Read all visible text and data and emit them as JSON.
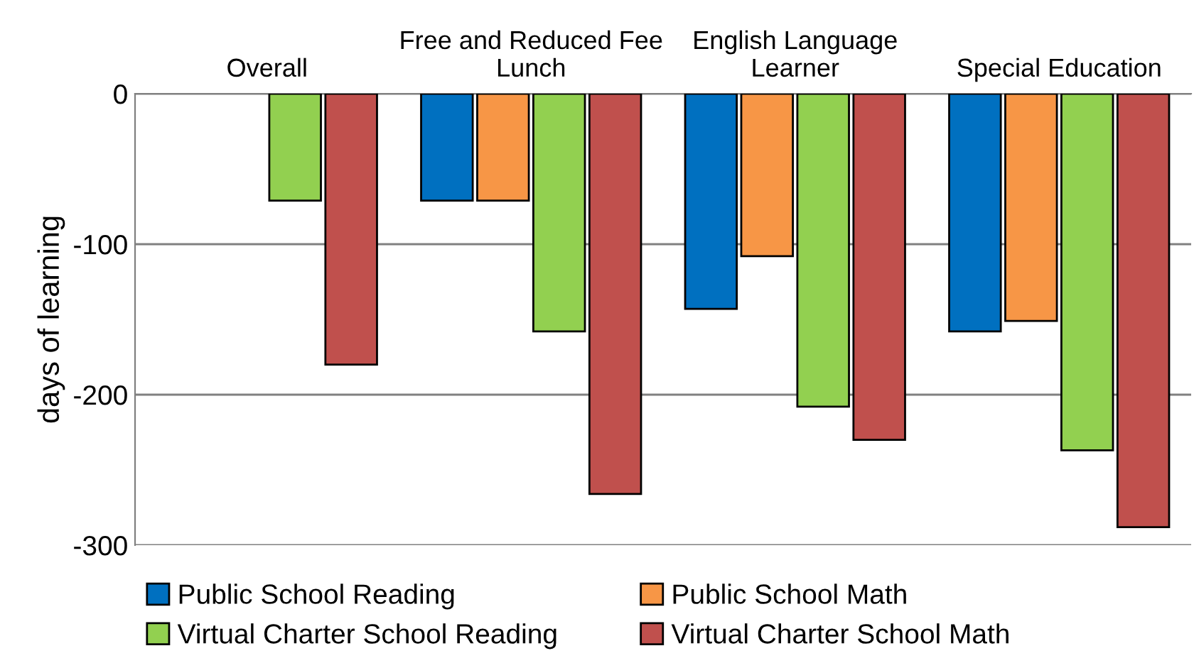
{
  "chart_data": {
    "type": "bar",
    "ylabel": "days of learning",
    "categories": [
      "Overall",
      "Free and Reduced Fee\nLunch",
      "English Language\nLearner",
      "Special Education"
    ],
    "series": [
      {
        "name": "Public School Reading",
        "color": "#0070c0",
        "values": [
          null,
          -71,
          -143,
          -158
        ]
      },
      {
        "name": "Public School Math",
        "color": "#f79646",
        "values": [
          null,
          -71,
          -108,
          -151
        ]
      },
      {
        "name": "Virtual Charter School Reading",
        "color": "#92d050",
        "values": [
          -71,
          -158,
          -208,
          -237
        ]
      },
      {
        "name": "Virtual Charter School Math",
        "color": "#c0504d",
        "values": [
          -180,
          -266,
          -230,
          -288
        ]
      }
    ],
    "ylim": [
      -300,
      0
    ],
    "yticks": [
      {
        "value": -300,
        "label": "-300"
      },
      {
        "value": -200,
        "label": "-200"
      },
      {
        "value": -100,
        "label": "-100"
      },
      0
    ],
    "grid": "y",
    "legend": "bottom"
  }
}
